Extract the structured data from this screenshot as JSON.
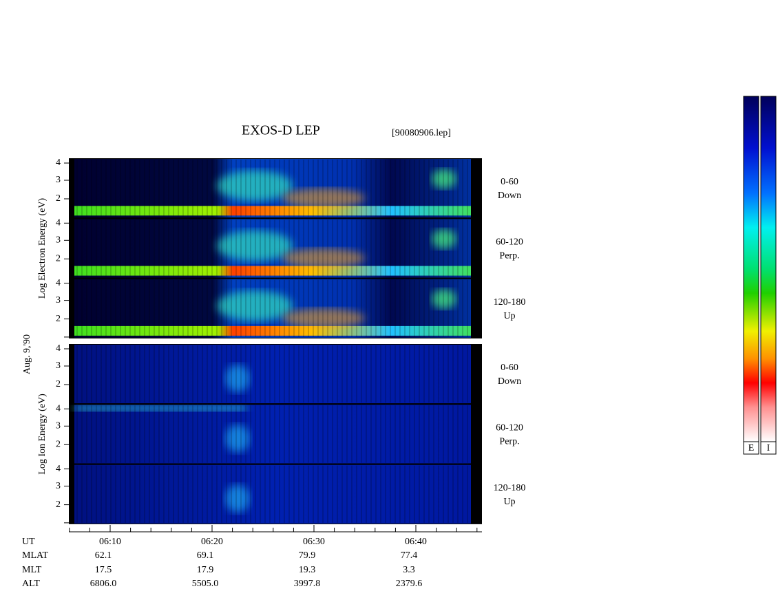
{
  "header": {
    "title": "EXOS-D LEP",
    "file": "[90080906.lep]",
    "date": "Aug. 9,'90"
  },
  "panels": [
    {
      "ylabel": "Log  Electron  Energy (eV)",
      "subpanels": [
        {
          "yticks": [
            "4",
            "3",
            "2"
          ],
          "angle": "0-60",
          "direction": "Down"
        },
        {
          "yticks": [
            "4",
            "3",
            "2"
          ],
          "angle": "60-120",
          "direction": "Perp."
        },
        {
          "yticks": [
            "4",
            "3",
            "2"
          ],
          "angle": "120-180",
          "direction": "Up"
        }
      ]
    },
    {
      "ylabel": "Log  Ion  Energy (eV)",
      "subpanels": [
        {
          "yticks": [
            "4",
            "3",
            "2"
          ],
          "angle": "0-60",
          "direction": "Down"
        },
        {
          "yticks": [
            "4",
            "3",
            "2"
          ],
          "angle": "60-120",
          "direction": "Perp."
        },
        {
          "yticks": [
            "4",
            "3",
            "2"
          ],
          "angle": "120-180",
          "direction": "Up"
        }
      ]
    }
  ],
  "ephemeris": {
    "labels": [
      "UT",
      "MLAT",
      "MLT",
      "ALT"
    ],
    "columns": [
      [
        "06:10",
        "62.1",
        "17.5",
        "6806.0"
      ],
      [
        "06:20",
        "69.1",
        "17.9",
        "5505.0"
      ],
      [
        "06:30",
        "79.9",
        "19.3",
        "3997.8"
      ],
      [
        "06:40",
        "77.4",
        "3.3",
        "2379.6"
      ]
    ]
  },
  "colorbar": {
    "labels": [
      "E",
      "I"
    ]
  }
}
